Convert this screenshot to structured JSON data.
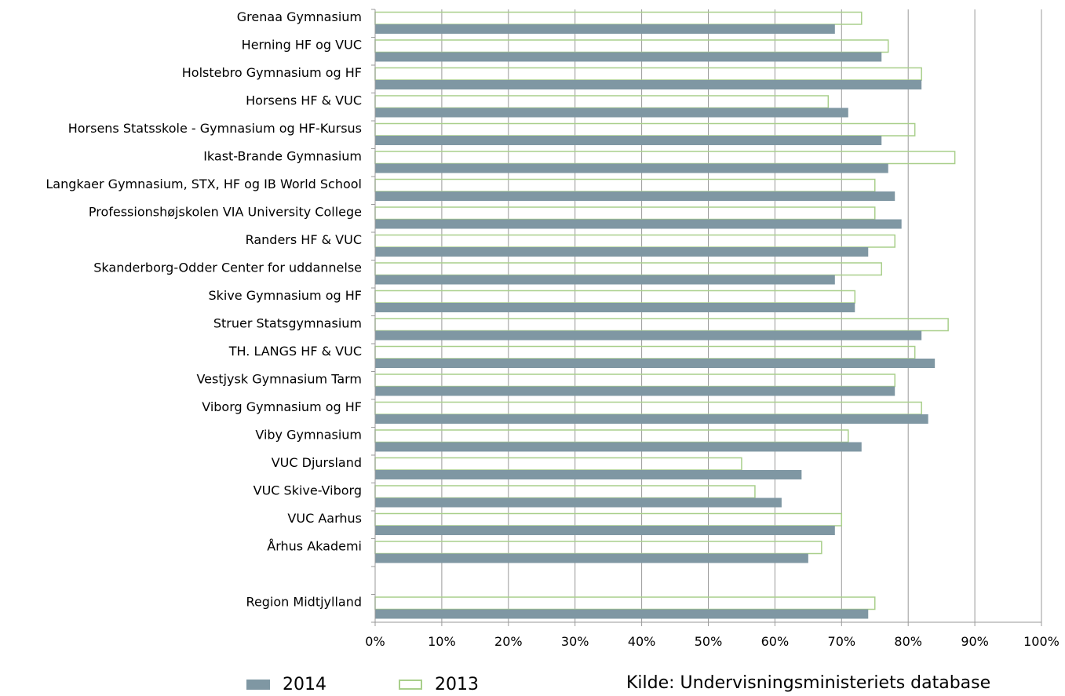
{
  "chart_data": {
    "type": "bar",
    "orientation": "horizontal",
    "categories": [
      "Grenaa Gymnasium",
      "Herning HF og VUC",
      "Holstebro Gymnasium og HF",
      "Horsens HF & VUC",
      "Horsens Statsskole - Gymnasium og HF-Kursus",
      "Ikast-Brande Gymnasium",
      "Langkaer Gymnasium, STX, HF og IB World School",
      "Professionshøjskolen VIA University College",
      "Randers HF & VUC",
      "Skanderborg-Odder Center for uddannelse",
      "Skive Gymnasium og HF",
      "Struer Statsgymnasium",
      "TH. LANGS HF & VUC",
      "Vestjysk Gymnasium Tarm",
      "Viborg Gymnasium og HF",
      "Viby Gymnasium",
      "VUC Djursland",
      "VUC Skive-Viborg",
      "VUC Aarhus",
      "Århus Akademi",
      "",
      "Region Midtjylland"
    ],
    "series": [
      {
        "name": "2014",
        "color": "#7f97a3",
        "style": "filled",
        "values": [
          69,
          76,
          82,
          71,
          76,
          77,
          78,
          79,
          74,
          69,
          72,
          82,
          84,
          78,
          83,
          73,
          64,
          61,
          69,
          65,
          null,
          74
        ]
      },
      {
        "name": "2013",
        "color": "#a9cf8b",
        "style": "outline",
        "values": [
          73,
          77,
          82,
          68,
          81,
          87,
          75,
          75,
          78,
          76,
          72,
          86,
          81,
          78,
          82,
          71,
          55,
          57,
          70,
          67,
          null,
          75
        ]
      }
    ],
    "xaxis": {
      "min": 0,
      "max": 100,
      "step": 10,
      "tick_labels": [
        "0%",
        "10%",
        "20%",
        "30%",
        "40%",
        "50%",
        "60%",
        "70%",
        "80%",
        "90%",
        "100%"
      ]
    },
    "grid": true,
    "legend_position": "bottom",
    "title": "",
    "xlabel": "",
    "ylabel": ""
  },
  "source_note": "Kilde: Undervisningsministeriets database"
}
